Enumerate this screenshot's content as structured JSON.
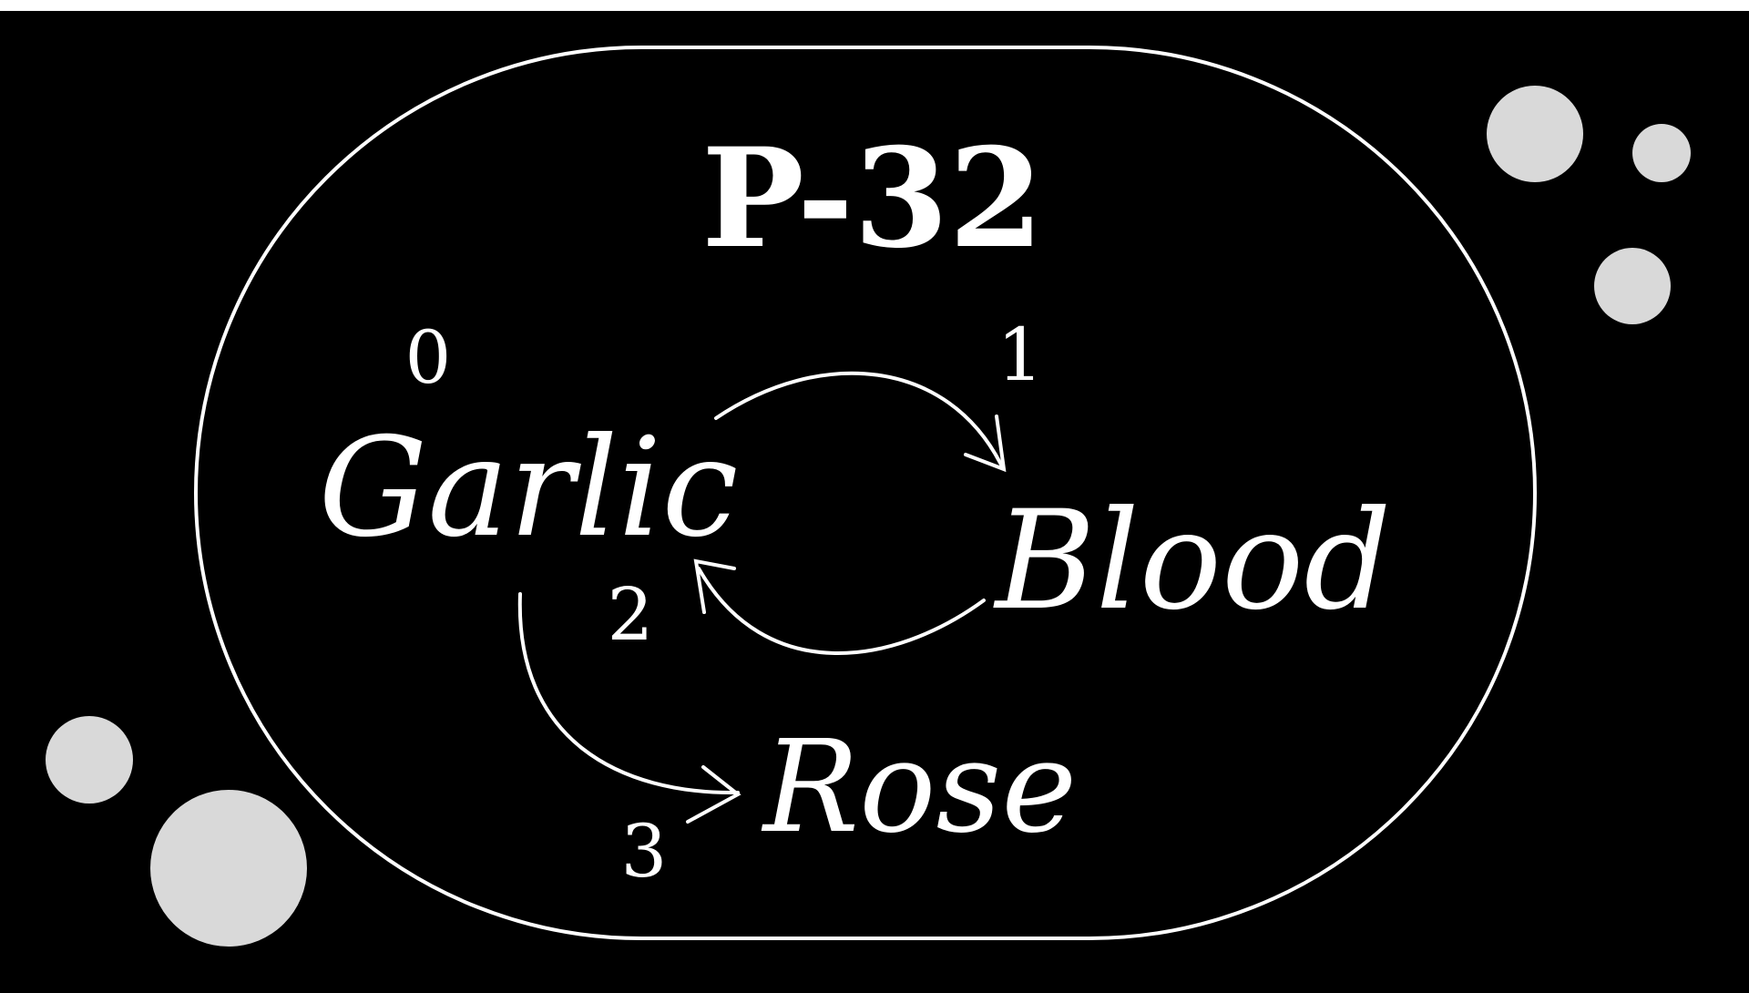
{
  "slide": {
    "title": "P-32",
    "colors": {
      "background": "#000000",
      "foreground": "#ffffff",
      "bubble": "#d9d9d9"
    }
  },
  "nodes": {
    "garlic": "Garlic",
    "blood": "Blood",
    "rose": "Rose"
  },
  "edges": {
    "step_0": "0",
    "step_1": "1",
    "step_2": "2",
    "step_3": "3"
  }
}
